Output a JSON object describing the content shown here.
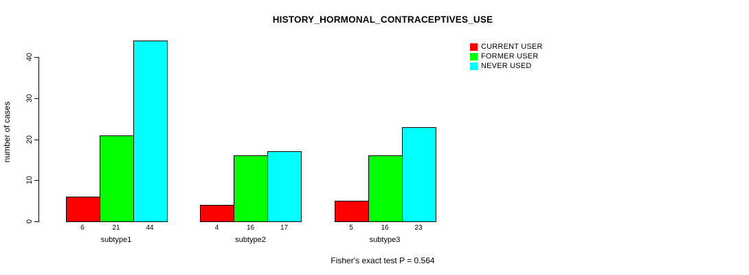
{
  "chart_data": {
    "type": "bar",
    "title": "HISTORY_HORMONAL_CONTRACEPTIVES_USE",
    "ylabel": "number of cases",
    "xlabel": "",
    "categories": [
      "subtype1",
      "subtype2",
      "subtype3"
    ],
    "series": [
      {
        "name": "CURRENT USER",
        "color": "#ff0000",
        "values": [
          6,
          4,
          5
        ]
      },
      {
        "name": "FORMER USER",
        "color": "#00ff00",
        "values": [
          21,
          16,
          16
        ]
      },
      {
        "name": "NEVER USED",
        "color": "#00ffff",
        "values": [
          44,
          17,
          23
        ]
      }
    ],
    "bar_value_labels": [
      [
        "6",
        "21",
        "44"
      ],
      [
        "4",
        "16",
        "17"
      ],
      [
        "5",
        "16",
        "23"
      ]
    ],
    "yticks": [
      0,
      10,
      20,
      30,
      40
    ],
    "ylim": [
      0,
      44
    ],
    "grid": false,
    "legend_position": "top-right-inside",
    "footnote": "Fisher's exact test P = 0.564",
    "axis_color": "#000000",
    "bar_border_color": "#000000",
    "background_color": "#ffffff",
    "text_color": "#000000"
  }
}
